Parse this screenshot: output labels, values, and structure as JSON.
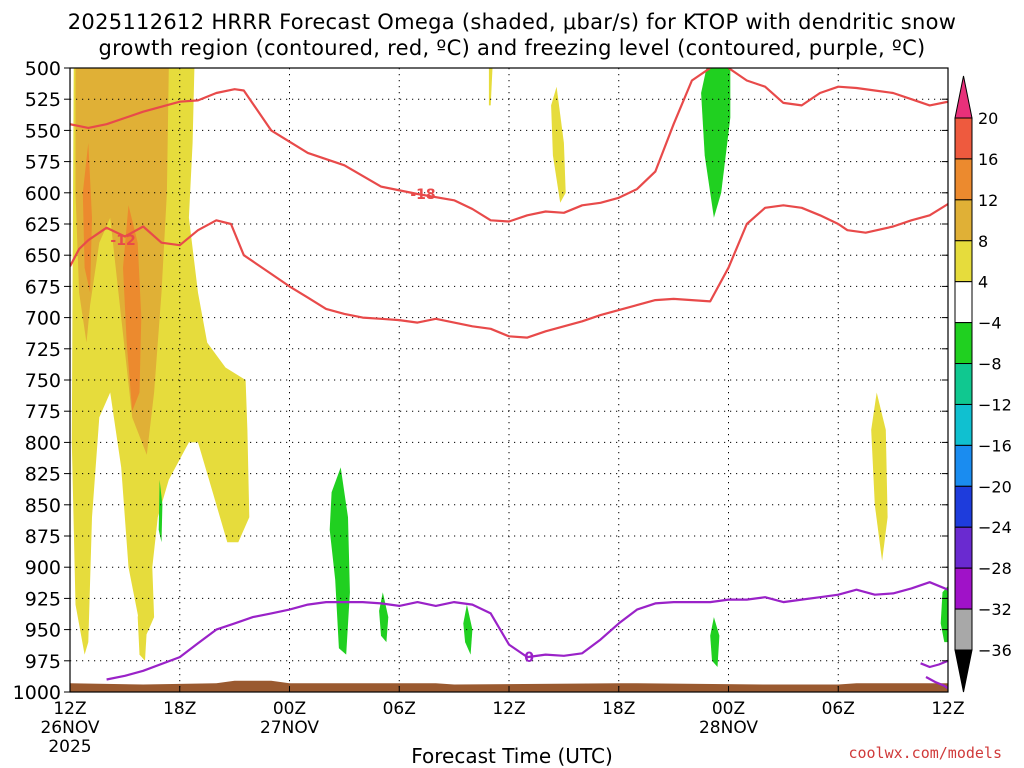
{
  "title_line1": "2025112612 HRRR Forecast Omega (shaded, μbar/s) for KTOP with dendritic snow",
  "title_line2": "growth region (contoured, red, ºC) and freezing level (contoured, purple, ºC)",
  "credit": "coolwx.com/models",
  "colors": {
    "plot_border": "#000000",
    "grid": "#000000",
    "ground": "#9a5a30",
    "dgz_line": "#e84a4a",
    "freezing_line": "#9a22c8"
  },
  "chart_data": {
    "type": "heatmap",
    "xlabel": "Forecast Time (UTC)",
    "ylabel": "",
    "xlim": [
      0,
      48
    ],
    "ylim": [
      1000,
      500
    ],
    "y_ticks": [
      500,
      525,
      550,
      575,
      600,
      625,
      650,
      675,
      700,
      725,
      750,
      775,
      800,
      825,
      850,
      875,
      900,
      925,
      950,
      975,
      1000
    ],
    "x_ticks": [
      {
        "x": 0,
        "label": "12Z",
        "sub": "26NOV",
        "sub2": "2025"
      },
      {
        "x": 6,
        "label": "18Z",
        "sub": "",
        "sub2": ""
      },
      {
        "x": 12,
        "label": "00Z",
        "sub": "27NOV",
        "sub2": ""
      },
      {
        "x": 18,
        "label": "06Z",
        "sub": "",
        "sub2": ""
      },
      {
        "x": 24,
        "label": "12Z",
        "sub": "",
        "sub2": ""
      },
      {
        "x": 30,
        "label": "18Z",
        "sub": "",
        "sub2": ""
      },
      {
        "x": 36,
        "label": "00Z",
        "sub": "28NOV",
        "sub2": ""
      },
      {
        "x": 42,
        "label": "06Z",
        "sub": "",
        "sub2": ""
      },
      {
        "x": 48,
        "label": "12Z",
        "sub": "",
        "sub2": ""
      }
    ],
    "colorbar": {
      "labels": [
        20,
        16,
        12,
        8,
        4,
        -4,
        -8,
        -12,
        -16,
        -20,
        -24,
        -28,
        -32,
        -36
      ],
      "colors": [
        "#e8307a",
        "#ee5a3e",
        "#ec8a2e",
        "#e0b036",
        "#e6dc3c",
        "#ffffff",
        "#20d020",
        "#10c890",
        "#10c0d0",
        "#1a8cf0",
        "#1e3cdc",
        "#6a2ad0",
        "#a012c8",
        "#a8a8a8",
        "#000000"
      ]
    },
    "omega_regions": [
      {
        "level": 4,
        "pts": [
          [
            0.2,
            500
          ],
          [
            6.8,
            500
          ],
          [
            6.7,
            560
          ],
          [
            6.5,
            620
          ],
          [
            7,
            680
          ],
          [
            7.5,
            720
          ],
          [
            8.5,
            740
          ],
          [
            9.6,
            750
          ],
          [
            9.7,
            790
          ],
          [
            9.8,
            860
          ],
          [
            9.2,
            880
          ],
          [
            8.6,
            880
          ],
          [
            7.8,
            840
          ],
          [
            7,
            800
          ],
          [
            6.5,
            800
          ],
          [
            5.4,
            830
          ],
          [
            4.8,
            860
          ],
          [
            4.5,
            900
          ],
          [
            4.6,
            940
          ],
          [
            4,
            960
          ],
          [
            3.2,
            900
          ],
          [
            2.8,
            820
          ],
          [
            2.2,
            760
          ],
          [
            1.6,
            780
          ],
          [
            1.2,
            860
          ],
          [
            1.0,
            960
          ],
          [
            0.8,
            970
          ],
          [
            0.3,
            930
          ],
          [
            0.1,
            800
          ]
        ]
      },
      {
        "level": 4,
        "pts": [
          [
            22.9,
            500
          ],
          [
            23.1,
            500
          ],
          [
            23.0,
            530
          ],
          [
            22.9,
            530
          ]
        ]
      },
      {
        "level": 4,
        "pts": [
          [
            26.6,
            515
          ],
          [
            27,
            560
          ],
          [
            27.1,
            600
          ],
          [
            26.8,
            608
          ],
          [
            26.4,
            570
          ],
          [
            26.3,
            530
          ]
        ]
      },
      {
        "level": 4,
        "pts": [
          [
            44.1,
            760
          ],
          [
            44.6,
            790
          ],
          [
            44.7,
            860
          ],
          [
            44.4,
            895
          ],
          [
            44.0,
            850
          ],
          [
            43.8,
            790
          ]
        ]
      },
      {
        "level": 4,
        "pts": [
          [
            3.9,
            920
          ],
          [
            4.2,
            950
          ],
          [
            4.1,
            975
          ],
          [
            3.8,
            970
          ],
          [
            3.7,
            940
          ]
        ]
      },
      {
        "level": 8,
        "pts": [
          [
            0.3,
            500
          ],
          [
            5.4,
            500
          ],
          [
            5.3,
            600
          ],
          [
            5.0,
            680
          ],
          [
            4.6,
            760
          ],
          [
            4.2,
            810
          ],
          [
            3.4,
            780
          ],
          [
            2.8,
            700
          ],
          [
            2.2,
            620
          ],
          [
            1.6,
            640
          ],
          [
            1.1,
            690
          ],
          [
            0.9,
            720
          ],
          [
            0.5,
            680
          ],
          [
            0.3,
            600
          ]
        ]
      },
      {
        "level": 12,
        "pts": [
          [
            3.2,
            610
          ],
          [
            3.7,
            640
          ],
          [
            3.9,
            700
          ],
          [
            3.8,
            760
          ],
          [
            3.4,
            775
          ],
          [
            3.1,
            720
          ],
          [
            2.9,
            660
          ]
        ]
      },
      {
        "level": 12,
        "pts": [
          [
            1.0,
            560
          ],
          [
            1.2,
            620
          ],
          [
            1.1,
            680
          ],
          [
            0.8,
            660
          ],
          [
            0.7,
            600
          ]
        ]
      },
      {
        "level": -4,
        "pts": [
          [
            34.8,
            500
          ],
          [
            36.1,
            500
          ],
          [
            36.1,
            540
          ],
          [
            35.6,
            600
          ],
          [
            35.2,
            620
          ],
          [
            34.7,
            570
          ],
          [
            34.5,
            520
          ]
        ]
      },
      {
        "level": -4,
        "pts": [
          [
            14.8,
            820
          ],
          [
            15.2,
            860
          ],
          [
            15.3,
            920
          ],
          [
            15.1,
            970
          ],
          [
            14.7,
            965
          ],
          [
            14.5,
            910
          ],
          [
            14.2,
            870
          ],
          [
            14.3,
            840
          ]
        ]
      },
      {
        "level": -4,
        "pts": [
          [
            17.1,
            920
          ],
          [
            17.4,
            940
          ],
          [
            17.3,
            960
          ],
          [
            17.0,
            955
          ],
          [
            16.9,
            935
          ]
        ]
      },
      {
        "level": -4,
        "pts": [
          [
            21.7,
            930
          ],
          [
            22.0,
            950
          ],
          [
            21.9,
            970
          ],
          [
            21.6,
            960
          ],
          [
            21.5,
            945
          ]
        ]
      },
      {
        "level": -4,
        "pts": [
          [
            4.9,
            830
          ],
          [
            5.05,
            850
          ],
          [
            5.0,
            880
          ],
          [
            4.85,
            870
          ]
        ]
      },
      {
        "level": -4,
        "pts": [
          [
            35.2,
            940
          ],
          [
            35.5,
            955
          ],
          [
            35.4,
            980
          ],
          [
            35.1,
            975
          ],
          [
            35.0,
            955
          ]
        ]
      },
      {
        "level": -4,
        "pts": [
          [
            47.7,
            920
          ],
          [
            48,
            915
          ],
          [
            48,
            960
          ],
          [
            47.8,
            960
          ],
          [
            47.6,
            945
          ]
        ]
      }
    ],
    "dgz_contours": [
      {
        "value": -18,
        "label": "-18",
        "label_x": 19.3,
        "label_y": 601,
        "pts": [
          [
            0,
            545
          ],
          [
            1,
            548
          ],
          [
            2,
            545
          ],
          [
            4,
            535
          ],
          [
            6,
            527
          ],
          [
            7,
            526
          ],
          [
            8,
            520
          ],
          [
            9,
            517
          ],
          [
            9.5,
            518
          ],
          [
            11,
            550
          ],
          [
            13,
            568
          ],
          [
            15,
            578
          ],
          [
            17,
            595
          ],
          [
            19,
            601
          ],
          [
            21,
            606
          ],
          [
            22,
            613
          ],
          [
            23,
            622
          ],
          [
            24,
            623
          ],
          [
            25,
            618
          ],
          [
            26,
            615
          ],
          [
            27,
            616
          ],
          [
            28,
            610
          ],
          [
            29,
            608
          ],
          [
            30,
            604
          ],
          [
            31,
            597
          ],
          [
            32,
            583
          ],
          [
            33,
            545
          ],
          [
            34,
            510
          ],
          [
            35,
            500
          ]
        ]
      },
      {
        "value": -18,
        "label": "",
        "label_x": 0,
        "label_y": 0,
        "pts": [
          [
            36,
            500
          ],
          [
            37,
            510
          ],
          [
            38,
            515
          ],
          [
            39,
            528
          ],
          [
            40,
            530
          ],
          [
            41,
            520
          ],
          [
            42,
            515
          ],
          [
            43,
            516
          ],
          [
            44,
            518
          ],
          [
            45,
            520
          ],
          [
            46,
            525
          ],
          [
            47,
            530
          ],
          [
            48,
            527
          ]
        ]
      },
      {
        "value": -12,
        "label": "-12",
        "label_x": 2.9,
        "label_y": 638,
        "pts": [
          [
            0,
            659
          ],
          [
            0.5,
            645
          ],
          [
            1,
            638
          ],
          [
            2,
            628
          ],
          [
            3,
            635
          ],
          [
            4,
            627
          ],
          [
            5,
            640
          ],
          [
            6,
            642
          ],
          [
            7,
            630
          ],
          [
            8,
            622
          ],
          [
            8.8,
            625
          ],
          [
            9.5,
            650
          ],
          [
            11,
            665
          ],
          [
            12,
            675
          ],
          [
            13,
            684
          ],
          [
            14,
            693
          ],
          [
            15,
            697
          ],
          [
            16,
            700
          ],
          [
            17,
            701
          ],
          [
            18,
            702
          ],
          [
            19,
            704
          ],
          [
            20,
            701
          ],
          [
            21,
            704
          ],
          [
            22,
            707
          ],
          [
            23,
            709
          ],
          [
            24,
            715
          ],
          [
            25,
            716
          ],
          [
            26,
            711
          ],
          [
            27,
            707
          ],
          [
            28,
            703
          ],
          [
            29,
            698
          ],
          [
            30,
            694
          ],
          [
            31,
            690
          ],
          [
            32,
            686
          ],
          [
            33,
            685
          ],
          [
            34,
            686
          ],
          [
            35,
            687
          ],
          [
            36,
            660
          ],
          [
            37,
            625
          ],
          [
            38,
            612
          ],
          [
            39,
            610
          ],
          [
            40,
            612
          ],
          [
            41,
            618
          ],
          [
            42,
            625
          ],
          [
            42.5,
            630
          ],
          [
            43.5,
            632
          ],
          [
            45,
            627
          ],
          [
            46,
            622
          ],
          [
            47,
            618
          ],
          [
            48,
            609
          ]
        ]
      }
    ],
    "freezing_contours": [
      {
        "value": 0,
        "label": "0",
        "label_x": 25.1,
        "label_y": 972,
        "pts": [
          [
            2,
            990
          ],
          [
            3,
            987
          ],
          [
            4,
            983
          ],
          [
            6,
            972
          ],
          [
            7,
            961
          ],
          [
            8,
            950
          ],
          [
            9,
            945
          ],
          [
            10,
            940
          ],
          [
            11,
            937
          ],
          [
            12,
            934
          ],
          [
            13,
            930
          ],
          [
            14,
            928
          ],
          [
            15,
            928
          ],
          [
            16,
            928
          ],
          [
            17,
            929
          ],
          [
            18,
            931
          ],
          [
            19,
            928
          ],
          [
            20,
            931
          ],
          [
            21,
            928
          ],
          [
            22,
            930
          ],
          [
            23,
            937
          ],
          [
            24,
            962
          ],
          [
            25,
            972
          ],
          [
            26,
            970
          ],
          [
            27,
            971
          ],
          [
            28,
            969
          ],
          [
            29,
            958
          ],
          [
            30,
            945
          ],
          [
            31,
            934
          ],
          [
            32,
            929
          ],
          [
            33,
            928
          ],
          [
            34,
            928
          ],
          [
            35,
            928
          ],
          [
            36,
            926
          ],
          [
            37,
            926
          ],
          [
            38,
            924
          ],
          [
            39,
            928
          ],
          [
            40,
            926
          ],
          [
            41,
            924
          ],
          [
            42,
            922
          ],
          [
            43,
            918
          ],
          [
            44,
            922
          ],
          [
            45,
            921
          ],
          [
            46,
            917
          ],
          [
            47,
            912
          ],
          [
            48,
            918
          ]
        ]
      },
      {
        "value": 0,
        "label": "",
        "label_x": 0,
        "label_y": 0,
        "pts": [
          [
            46.5,
            977
          ],
          [
            47,
            980
          ],
          [
            47.5,
            978
          ],
          [
            48,
            975
          ]
        ]
      },
      {
        "value": 0,
        "label": "",
        "label_x": 0,
        "label_y": 0,
        "pts": [
          [
            46.8,
            988
          ],
          [
            47.3,
            992
          ],
          [
            47.8,
            995
          ],
          [
            48,
            997
          ]
        ]
      }
    ],
    "ground_profile": [
      [
        0,
        993
      ],
      [
        4,
        994
      ],
      [
        8,
        993
      ],
      [
        9,
        991
      ],
      [
        11,
        991
      ],
      [
        12,
        993
      ],
      [
        20,
        993
      ],
      [
        21,
        994
      ],
      [
        30,
        993
      ],
      [
        31,
        993
      ],
      [
        38,
        994
      ],
      [
        42,
        994
      ],
      [
        43,
        993
      ],
      [
        48,
        993
      ]
    ]
  }
}
